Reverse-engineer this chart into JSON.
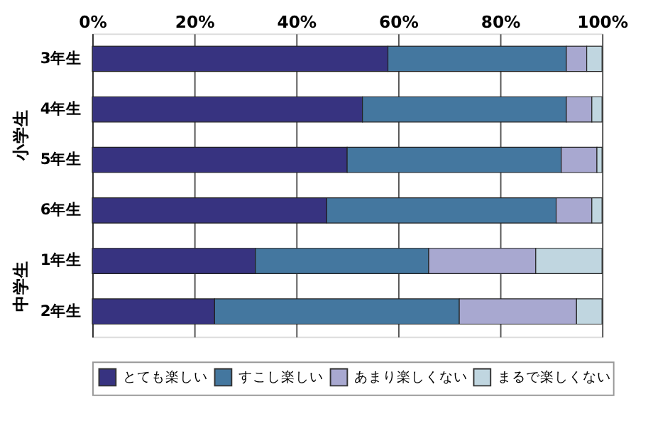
{
  "chart_data": {
    "type": "bar",
    "orientation": "horizontal",
    "stacked": true,
    "categories": [
      "3年生",
      "4年生",
      "5年生",
      "6年生",
      "1年生",
      "2年生"
    ],
    "series": [
      {
        "name": "とても楽しい",
        "color": "#373380",
        "values": [
          58,
          53,
          50,
          46,
          32,
          24
        ]
      },
      {
        "name": "すこし楽しい",
        "color": "#44779f",
        "values": [
          35,
          40,
          42,
          45,
          34,
          48
        ]
      },
      {
        "name": "あまり楽しくない",
        "color": "#a8a8d0",
        "values": [
          4,
          5,
          7,
          7,
          21,
          23
        ]
      },
      {
        "name": "まるで楽しくない",
        "color": "#c0d6e0",
        "values": [
          3,
          2,
          1,
          2,
          13,
          5
        ]
      }
    ],
    "xlim": [
      0,
      100
    ],
    "xticks": [
      {
        "value": 0,
        "label": "0%"
      },
      {
        "value": 20,
        "label": "20%"
      },
      {
        "value": 40,
        "label": "40%"
      },
      {
        "value": 60,
        "label": "60%"
      },
      {
        "value": 80,
        "label": "80%"
      },
      {
        "value": 100,
        "label": "100%"
      }
    ],
    "grid": "x",
    "legend": "bottom",
    "annotations": [
      "小学生",
      "中学生"
    ]
  }
}
